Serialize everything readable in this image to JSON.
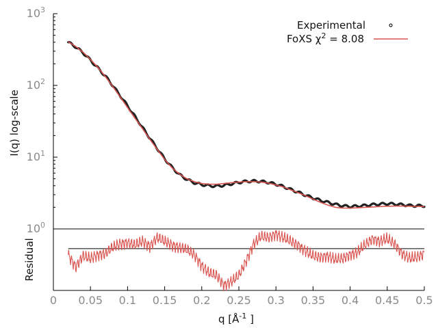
{
  "chart_data": [
    {
      "type": "line",
      "panel": "fit",
      "ylabel": "I(q) log-scale",
      "yscale": "log",
      "ylim": [
        1,
        1000
      ],
      "yticks": [
        {
          "value": 1,
          "base": "10",
          "exp": "0"
        },
        {
          "value": 10,
          "base": "10",
          "exp": "1"
        },
        {
          "value": 100,
          "base": "10",
          "exp": "2"
        },
        {
          "value": 1000,
          "base": "10",
          "exp": "3"
        }
      ],
      "xlim": [
        0,
        0.5
      ],
      "legend_position": "top-right",
      "legend": [
        {
          "label": "Experimental",
          "style": "points",
          "color": "#222222"
        },
        {
          "label": "FoXS χ",
          "sup": "2",
          "suffix": " = 8.08",
          "style": "line",
          "color": "#d9534f"
        }
      ],
      "series": [
        {
          "name": "Experimental",
          "style": "points",
          "color": "#222222",
          "x": [
            0.02,
            0.03,
            0.04,
            0.05,
            0.06,
            0.07,
            0.08,
            0.09,
            0.1,
            0.11,
            0.12,
            0.13,
            0.14,
            0.15,
            0.16,
            0.17,
            0.18,
            0.19,
            0.2,
            0.21,
            0.22,
            0.23,
            0.24,
            0.25,
            0.26,
            0.27,
            0.28,
            0.29,
            0.3,
            0.31,
            0.32,
            0.33,
            0.34,
            0.35,
            0.36,
            0.37,
            0.38,
            0.39,
            0.4,
            0.41,
            0.42,
            0.43,
            0.44,
            0.45,
            0.46,
            0.47,
            0.48,
            0.49,
            0.5
          ],
          "y": [
            400,
            345,
            285,
            225,
            175,
            135,
            100,
            72,
            52,
            37,
            26,
            18.5,
            13.2,
            9.5,
            7.2,
            5.7,
            4.9,
            4.4,
            4.15,
            4.0,
            3.95,
            4.05,
            4.25,
            4.45,
            4.6,
            4.65,
            4.6,
            4.45,
            4.2,
            3.9,
            3.55,
            3.25,
            2.95,
            2.7,
            2.5,
            2.35,
            2.2,
            2.1,
            2.05,
            2.08,
            2.12,
            2.18,
            2.22,
            2.25,
            2.22,
            2.18,
            2.12,
            2.1,
            2.1
          ]
        },
        {
          "name": "FoXS χ2 = 8.08",
          "style": "line",
          "color": "#d9534f",
          "x": [
            0.02,
            0.03,
            0.04,
            0.05,
            0.06,
            0.07,
            0.08,
            0.09,
            0.1,
            0.11,
            0.12,
            0.13,
            0.14,
            0.15,
            0.16,
            0.17,
            0.18,
            0.19,
            0.2,
            0.21,
            0.22,
            0.23,
            0.24,
            0.25,
            0.26,
            0.27,
            0.28,
            0.29,
            0.3,
            0.31,
            0.32,
            0.33,
            0.34,
            0.35,
            0.36,
            0.37,
            0.38,
            0.39,
            0.4,
            0.41,
            0.42,
            0.43,
            0.44,
            0.45,
            0.46,
            0.47,
            0.48,
            0.49,
            0.5
          ],
          "y": [
            405,
            350,
            290,
            230,
            178,
            133,
            97,
            69,
            49,
            35,
            25,
            17.8,
            12.8,
            9.3,
            7.1,
            5.8,
            5.0,
            4.55,
            4.3,
            4.2,
            4.2,
            4.3,
            4.4,
            4.5,
            4.55,
            4.55,
            4.5,
            4.35,
            4.1,
            3.85,
            3.5,
            3.2,
            2.9,
            2.6,
            2.35,
            2.15,
            2.0,
            1.95,
            1.95,
            1.97,
            2.0,
            2.02,
            2.05,
            2.07,
            2.08,
            2.08,
            2.07,
            2.06,
            2.05
          ]
        }
      ]
    },
    {
      "type": "line",
      "panel": "residual",
      "ylabel": "Residual",
      "xlabel": "q [Å",
      "xlabel_sup": "-1",
      "xlabel_suffix": " ]",
      "xlim": [
        0,
        0.5
      ],
      "xticks": [
        "0",
        "0.05",
        "0.1",
        "0.15",
        "0.2",
        "0.25",
        "0.3",
        "0.35",
        "0.4",
        "0.45",
        "0.5"
      ],
      "baseline": 0,
      "series": [
        {
          "name": "Residual",
          "color": "#d9534f",
          "x": [
            0.02,
            0.03,
            0.04,
            0.05,
            0.06,
            0.07,
            0.08,
            0.09,
            0.1,
            0.11,
            0.12,
            0.13,
            0.14,
            0.15,
            0.16,
            0.17,
            0.18,
            0.19,
            0.2,
            0.21,
            0.22,
            0.23,
            0.24,
            0.25,
            0.26,
            0.27,
            0.28,
            0.29,
            0.3,
            0.31,
            0.32,
            0.33,
            0.34,
            0.35,
            0.36,
            0.37,
            0.38,
            0.39,
            0.4,
            0.41,
            0.42,
            0.43,
            0.44,
            0.45,
            0.46,
            0.47,
            0.48,
            0.49,
            0.5
          ],
          "y": [
            -0.5,
            -1.5,
            -0.6,
            -0.8,
            -0.5,
            -0.4,
            0.1,
            0.4,
            0.5,
            0.3,
            0.6,
            0.2,
            0.9,
            0.6,
            0.3,
            0.1,
            -0.1,
            -0.5,
            -1.4,
            -2.0,
            -2.2,
            -3.0,
            -2.7,
            -2.2,
            -1.0,
            0.4,
            1.0,
            0.9,
            1.2,
            0.9,
            0.6,
            0.3,
            -0.2,
            -0.6,
            -0.7,
            -0.6,
            -0.9,
            -0.8,
            -0.5,
            -0.3,
            0.3,
            0.8,
            0.6,
            0.8,
            0.4,
            -0.4,
            -0.8,
            -0.7,
            -0.4
          ]
        }
      ]
    }
  ]
}
